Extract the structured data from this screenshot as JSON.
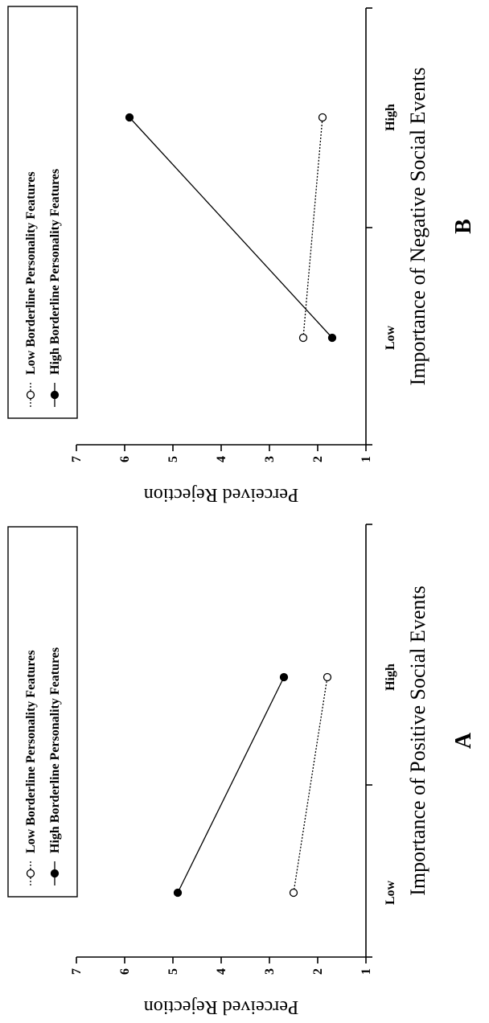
{
  "chart_data": [
    {
      "type": "line",
      "panel_label": "A",
      "xlabel": "Importance of Positive Social Events",
      "ylabel": "Perceived Rejection",
      "categories": [
        "Low",
        "High"
      ],
      "ylim": [
        1,
        7
      ],
      "yticks": [
        "1",
        "2",
        "3",
        "4",
        "5",
        "6",
        "7"
      ],
      "legend_position": "top-right",
      "series": [
        {
          "name": "Low Borderline Personality Features",
          "values": [
            2.5,
            1.8
          ],
          "marker": "open-circle",
          "line": "dotted",
          "color": "#000000"
        },
        {
          "name": "High Borderline Personality Features",
          "values": [
            4.9,
            2.7
          ],
          "marker": "filled-circle",
          "line": "solid",
          "color": "#000000"
        }
      ]
    },
    {
      "type": "line",
      "panel_label": "B",
      "xlabel": "Importance of Negative Social Events",
      "ylabel": "Perceived Rejection",
      "categories": [
        "Low",
        "High"
      ],
      "ylim": [
        1,
        7
      ],
      "yticks": [
        "1",
        "2",
        "3",
        "4",
        "5",
        "6",
        "7"
      ],
      "legend_position": "top-right",
      "series": [
        {
          "name": "Low Borderline Personality Features",
          "values": [
            2.3,
            1.9
          ],
          "marker": "open-circle",
          "line": "dotted",
          "color": "#000000"
        },
        {
          "name": "High Borderline Personality Features",
          "values": [
            1.7,
            5.9
          ],
          "marker": "filled-circle",
          "line": "solid",
          "color": "#000000"
        }
      ]
    }
  ]
}
